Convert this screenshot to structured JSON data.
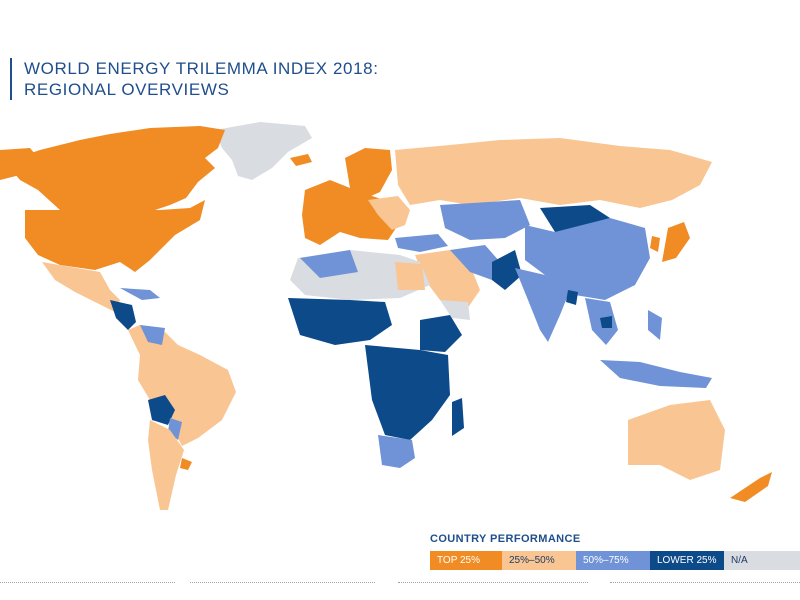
{
  "title": {
    "line1": "WORLD ENERGY TRILEMMA INDEX 2018:",
    "line2": "REGIONAL OVERVIEWS"
  },
  "legend": {
    "title": "COUNTRY PERFORMANCE",
    "items": [
      {
        "label": "TOP 25%",
        "color": "#f08c23",
        "text_color": "#ffffff"
      },
      {
        "label": "25%–50%",
        "color": "#f8c593",
        "text_color": "#1f3b66"
      },
      {
        "label": "50%–75%",
        "color": "#6f93d6",
        "text_color": "#ffffff"
      },
      {
        "label": "LOWER 25%",
        "color": "#0d4a8a",
        "text_color": "#ffffff"
      },
      {
        "label": "N/A",
        "color": "#d9dce1",
        "text_color": "#1f3b66"
      }
    ]
  },
  "colors": {
    "top": "#f08c23",
    "second": "#f8c593",
    "third": "#6f93d6",
    "lower": "#0d4a8a",
    "na": "#d9dce1"
  }
}
